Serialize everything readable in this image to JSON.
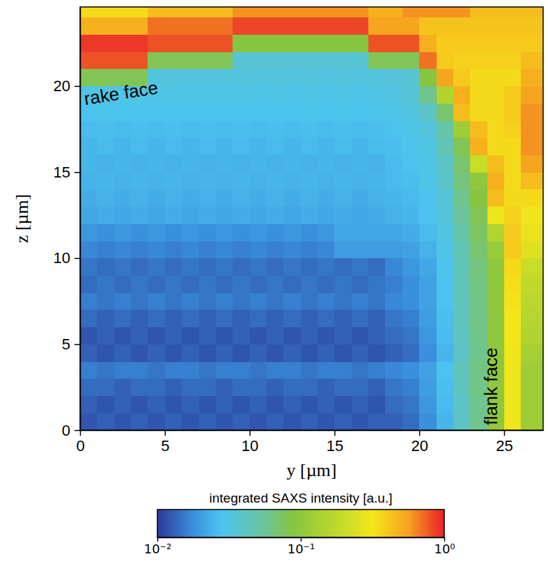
{
  "chart_data": {
    "type": "heatmap",
    "xlabel": "y [µm]",
    "ylabel": "z [µm]",
    "xlim": [
      0,
      27.3
    ],
    "ylim": [
      0,
      24.6
    ],
    "xticks": [
      0,
      5,
      10,
      15,
      20,
      25
    ],
    "yticks": [
      0,
      5,
      10,
      15,
      20
    ],
    "x_edges": [
      0,
      1,
      2,
      3,
      4,
      5,
      6,
      7,
      8,
      9,
      10,
      11,
      12,
      13,
      14,
      15,
      16,
      17,
      18,
      19,
      20,
      21,
      22,
      23,
      24,
      25,
      26,
      27.3
    ],
    "y_edges": [
      0,
      1,
      2,
      3,
      4,
      5,
      6,
      7,
      8,
      9,
      10,
      11,
      12,
      13,
      14,
      15,
      16,
      17,
      18,
      19,
      20,
      21,
      22,
      23,
      24,
      24.6
    ],
    "cells": [
      [
        0.012,
        0.013,
        0.012,
        0.013,
        0.012,
        0.013,
        0.012,
        0.013,
        0.012,
        0.013,
        0.012,
        0.013,
        0.012,
        0.013,
        0.012,
        0.013,
        0.012,
        0.013,
        0.013,
        0.014,
        0.018,
        0.025,
        0.04,
        0.06,
        0.1,
        0.3,
        0.12
      ],
      [
        0.013,
        0.012,
        0.013,
        0.012,
        0.013,
        0.012,
        0.013,
        0.012,
        0.013,
        0.012,
        0.013,
        0.012,
        0.013,
        0.012,
        0.013,
        0.012,
        0.013,
        0.012,
        0.014,
        0.015,
        0.019,
        0.026,
        0.04,
        0.06,
        0.1,
        0.3,
        0.12
      ],
      [
        0.014,
        0.014,
        0.013,
        0.014,
        0.014,
        0.013,
        0.014,
        0.014,
        0.013,
        0.014,
        0.014,
        0.013,
        0.014,
        0.014,
        0.013,
        0.014,
        0.014,
        0.013,
        0.015,
        0.016,
        0.02,
        0.027,
        0.042,
        0.062,
        0.1,
        0.3,
        0.12
      ],
      [
        0.016,
        0.015,
        0.016,
        0.016,
        0.015,
        0.016,
        0.016,
        0.015,
        0.016,
        0.016,
        0.015,
        0.016,
        0.016,
        0.015,
        0.016,
        0.016,
        0.015,
        0.016,
        0.017,
        0.018,
        0.021,
        0.028,
        0.043,
        0.063,
        0.1,
        0.3,
        0.12
      ],
      [
        0.013,
        0.012,
        0.013,
        0.012,
        0.013,
        0.012,
        0.013,
        0.012,
        0.013,
        0.012,
        0.013,
        0.012,
        0.013,
        0.012,
        0.013,
        0.012,
        0.013,
        0.012,
        0.013,
        0.014,
        0.018,
        0.025,
        0.04,
        0.06,
        0.1,
        0.3,
        0.13
      ],
      [
        0.012,
        0.013,
        0.012,
        0.013,
        0.012,
        0.013,
        0.012,
        0.013,
        0.012,
        0.013,
        0.012,
        0.013,
        0.012,
        0.013,
        0.012,
        0.013,
        0.012,
        0.013,
        0.014,
        0.015,
        0.019,
        0.026,
        0.041,
        0.061,
        0.1,
        0.32,
        0.15
      ],
      [
        0.014,
        0.013,
        0.014,
        0.013,
        0.014,
        0.013,
        0.014,
        0.013,
        0.014,
        0.013,
        0.014,
        0.013,
        0.014,
        0.013,
        0.014,
        0.013,
        0.014,
        0.013,
        0.015,
        0.016,
        0.02,
        0.027,
        0.042,
        0.062,
        0.1,
        0.32,
        0.16
      ],
      [
        0.016,
        0.015,
        0.016,
        0.015,
        0.016,
        0.015,
        0.016,
        0.015,
        0.016,
        0.015,
        0.016,
        0.015,
        0.016,
        0.015,
        0.016,
        0.015,
        0.016,
        0.015,
        0.017,
        0.018,
        0.021,
        0.028,
        0.043,
        0.063,
        0.1,
        0.33,
        0.17
      ],
      [
        0.014,
        0.015,
        0.014,
        0.015,
        0.014,
        0.015,
        0.014,
        0.015,
        0.014,
        0.015,
        0.014,
        0.015,
        0.014,
        0.015,
        0.014,
        0.015,
        0.014,
        0.015,
        0.016,
        0.018,
        0.021,
        0.028,
        0.044,
        0.064,
        0.1,
        0.34,
        0.18
      ],
      [
        0.015,
        0.014,
        0.015,
        0.014,
        0.015,
        0.014,
        0.015,
        0.014,
        0.015,
        0.014,
        0.015,
        0.014,
        0.015,
        0.014,
        0.015,
        0.014,
        0.015,
        0.014,
        0.017,
        0.019,
        0.022,
        0.029,
        0.045,
        0.065,
        0.1,
        0.35,
        0.2
      ],
      [
        0.017,
        0.016,
        0.017,
        0.016,
        0.017,
        0.016,
        0.017,
        0.016,
        0.017,
        0.016,
        0.017,
        0.016,
        0.017,
        0.016,
        0.017,
        0.02,
        0.02,
        0.02,
        0.02,
        0.021,
        0.024,
        0.03,
        0.045,
        0.07,
        0.11,
        0.4,
        0.25
      ],
      [
        0.019,
        0.018,
        0.019,
        0.018,
        0.019,
        0.018,
        0.019,
        0.018,
        0.019,
        0.018,
        0.019,
        0.018,
        0.019,
        0.018,
        0.019,
        0.022,
        0.022,
        0.022,
        0.022,
        0.023,
        0.026,
        0.032,
        0.05,
        0.075,
        0.15,
        0.4,
        0.28
      ],
      [
        0.022,
        0.023,
        0.022,
        0.023,
        0.022,
        0.023,
        0.022,
        0.023,
        0.022,
        0.023,
        0.022,
        0.023,
        0.022,
        0.023,
        0.022,
        0.023,
        0.022,
        0.023,
        0.024,
        0.025,
        0.028,
        0.034,
        0.055,
        0.08,
        0.3,
        0.38,
        0.3
      ],
      [
        0.023,
        0.024,
        0.023,
        0.024,
        0.023,
        0.024,
        0.023,
        0.024,
        0.023,
        0.024,
        0.023,
        0.024,
        0.023,
        0.024,
        0.023,
        0.024,
        0.023,
        0.024,
        0.025,
        0.026,
        0.028,
        0.035,
        0.06,
        0.09,
        0.45,
        0.35,
        0.35
      ],
      [
        0.024,
        0.025,
        0.024,
        0.025,
        0.024,
        0.025,
        0.024,
        0.025,
        0.024,
        0.025,
        0.024,
        0.025,
        0.024,
        0.025,
        0.024,
        0.025,
        0.024,
        0.025,
        0.026,
        0.027,
        0.03,
        0.038,
        0.065,
        0.1,
        0.5,
        0.35,
        0.45
      ],
      [
        0.025,
        0.024,
        0.025,
        0.024,
        0.025,
        0.024,
        0.025,
        0.024,
        0.025,
        0.024,
        0.025,
        0.024,
        0.025,
        0.024,
        0.025,
        0.024,
        0.025,
        0.024,
        0.026,
        0.028,
        0.03,
        0.04,
        0.07,
        0.2,
        0.45,
        0.35,
        0.55
      ],
      [
        0.025,
        0.026,
        0.025,
        0.026,
        0.025,
        0.026,
        0.025,
        0.026,
        0.025,
        0.026,
        0.025,
        0.026,
        0.025,
        0.026,
        0.025,
        0.026,
        0.025,
        0.026,
        0.027,
        0.029,
        0.031,
        0.045,
        0.08,
        0.5,
        0.35,
        0.35,
        0.6
      ],
      [
        0.026,
        0.027,
        0.026,
        0.027,
        0.026,
        0.027,
        0.026,
        0.027,
        0.026,
        0.027,
        0.026,
        0.027,
        0.026,
        0.027,
        0.026,
        0.027,
        0.026,
        0.027,
        0.028,
        0.03,
        0.033,
        0.05,
        0.12,
        0.45,
        0.35,
        0.38,
        0.6
      ],
      [
        0.028,
        0.029,
        0.028,
        0.029,
        0.028,
        0.029,
        0.028,
        0.029,
        0.028,
        0.029,
        0.028,
        0.029,
        0.028,
        0.029,
        0.028,
        0.029,
        0.028,
        0.029,
        0.03,
        0.032,
        0.04,
        0.07,
        0.45,
        0.35,
        0.35,
        0.4,
        0.6
      ],
      [
        0.03,
        0.031,
        0.03,
        0.031,
        0.03,
        0.031,
        0.03,
        0.031,
        0.03,
        0.031,
        0.03,
        0.031,
        0.03,
        0.031,
        0.03,
        0.031,
        0.03,
        0.031,
        0.032,
        0.035,
        0.06,
        0.15,
        0.5,
        0.35,
        0.35,
        0.4,
        0.55
      ],
      [
        0.08,
        0.08,
        0.08,
        0.08,
        0.032,
        0.033,
        0.032,
        0.033,
        0.032,
        0.033,
        0.032,
        0.033,
        0.032,
        0.033,
        0.032,
        0.033,
        0.032,
        0.033,
        0.034,
        0.036,
        0.09,
        0.55,
        0.4,
        0.35,
        0.35,
        0.35,
        0.5
      ],
      [
        0.8,
        0.8,
        0.8,
        0.8,
        0.08,
        0.08,
        0.08,
        0.08,
        0.08,
        0.035,
        0.035,
        0.035,
        0.035,
        0.035,
        0.035,
        0.035,
        0.035,
        0.08,
        0.08,
        0.08,
        0.7,
        0.4,
        0.38,
        0.38,
        0.38,
        0.38,
        0.45
      ],
      [
        0.9,
        0.9,
        0.9,
        0.9,
        0.8,
        0.8,
        0.8,
        0.8,
        0.8,
        0.09,
        0.09,
        0.09,
        0.09,
        0.09,
        0.09,
        0.09,
        0.09,
        0.8,
        0.8,
        0.8,
        0.5,
        0.4,
        0.4,
        0.4,
        0.4,
        0.4,
        0.4
      ],
      [
        0.5,
        0.5,
        0.5,
        0.5,
        0.7,
        0.7,
        0.7,
        0.7,
        0.7,
        0.85,
        0.85,
        0.85,
        0.85,
        0.85,
        0.85,
        0.85,
        0.85,
        0.55,
        0.55,
        0.55,
        0.42,
        0.42,
        0.42,
        0.42,
        0.42,
        0.42,
        0.42
      ],
      [
        0.35,
        0.35,
        0.35,
        0.35,
        0.45,
        0.45,
        0.45,
        0.45,
        0.45,
        0.6,
        0.6,
        0.6,
        0.6,
        0.6,
        0.6,
        0.6,
        0.6,
        0.5,
        0.5,
        0.6,
        0.6,
        0.6,
        0.6,
        0.45,
        0.45,
        0.45,
        0.45
      ]
    ],
    "colorbar": {
      "label": "integrated SAXS intensity [a.u.]",
      "range": [
        0.01,
        1
      ],
      "log": true,
      "ticks": [
        {
          "value": 0.01,
          "label": "10⁻²"
        },
        {
          "value": 0.1,
          "label": "10⁻¹"
        },
        {
          "value": 1,
          "label": "10⁰"
        }
      ]
    },
    "annotations": [
      {
        "text": "rake face",
        "x": 0.3,
        "y": 18.9
      },
      {
        "text": "flank face",
        "x": 24.6,
        "y": 0.3
      }
    ]
  }
}
